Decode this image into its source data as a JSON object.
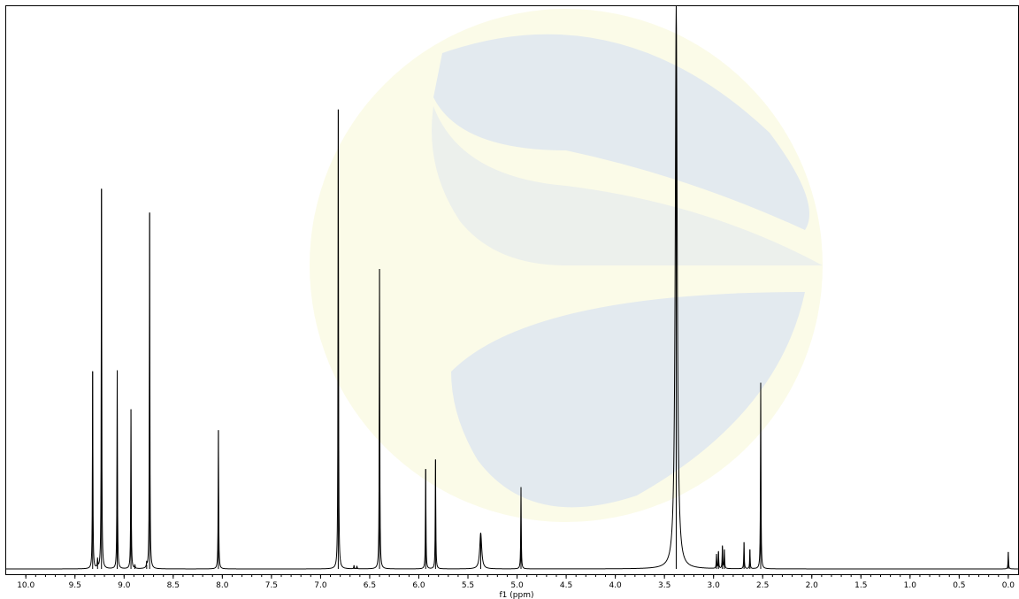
{
  "chart_data": {
    "type": "line",
    "xlabel": "f1 (ppm)",
    "ylabel": "",
    "xlim": [
      10.2,
      -0.1
    ],
    "ylim": [
      0,
      1.0
    ],
    "x_reversed": true,
    "x_ticks": [
      "10.0",
      "9.5",
      "9.0",
      "8.5",
      "8.0",
      "7.5",
      "7.0",
      "6.5",
      "6.0",
      "5.5",
      "5.0",
      "4.5",
      "4.0",
      "3.5",
      "3.0",
      "2.5",
      "2.0",
      "1.5",
      "1.0",
      "0.5",
      "0.0"
    ],
    "x_tick_values": [
      10.0,
      9.5,
      9.0,
      8.5,
      8.0,
      7.5,
      7.0,
      6.5,
      6.0,
      5.5,
      5.0,
      4.5,
      4.0,
      3.5,
      3.0,
      2.5,
      2.0,
      1.5,
      1.0,
      0.5,
      0.0
    ],
    "peaks": [
      {
        "ppm": 9.32,
        "intensity": 0.35
      },
      {
        "ppm": 9.27,
        "intensity": 0.015
      },
      {
        "ppm": 9.23,
        "intensity": 0.674
      },
      {
        "ppm": 9.07,
        "intensity": 0.352
      },
      {
        "ppm": 8.93,
        "intensity": 0.283
      },
      {
        "ppm": 8.89,
        "intensity": 0.006
      },
      {
        "ppm": 8.77,
        "intensity": 0.008
      },
      {
        "ppm": 8.74,
        "intensity": 0.632
      },
      {
        "ppm": 8.04,
        "intensity": 0.246
      },
      {
        "ppm": 6.82,
        "intensity": 0.815
      },
      {
        "ppm": 6.66,
        "intensity": 0.006
      },
      {
        "ppm": 6.63,
        "intensity": 0.005
      },
      {
        "ppm": 6.4,
        "intensity": 0.532
      },
      {
        "ppm": 5.93,
        "intensity": 0.177
      },
      {
        "ppm": 5.83,
        "intensity": 0.194
      },
      {
        "ppm": 5.37,
        "intensity": 0.064,
        "broad": true
      },
      {
        "ppm": 4.96,
        "intensity": 0.145
      },
      {
        "ppm": 3.38,
        "intensity": 1.0,
        "broad": true
      },
      {
        "ppm": 2.97,
        "intensity": 0.025
      },
      {
        "ppm": 2.95,
        "intensity": 0.03
      },
      {
        "ppm": 2.91,
        "intensity": 0.04
      },
      {
        "ppm": 2.89,
        "intensity": 0.033
      },
      {
        "ppm": 2.69,
        "intensity": 0.047
      },
      {
        "ppm": 2.63,
        "intensity": 0.034
      },
      {
        "ppm": 2.52,
        "intensity": 0.33
      },
      {
        "ppm": 0.0,
        "intensity": 0.03
      }
    ],
    "line_color": "#000000",
    "background_color": "#ffffff"
  },
  "colors": {
    "watermark_blue": "#e3eaef",
    "watermark_yellow": "#fbfbe8"
  }
}
